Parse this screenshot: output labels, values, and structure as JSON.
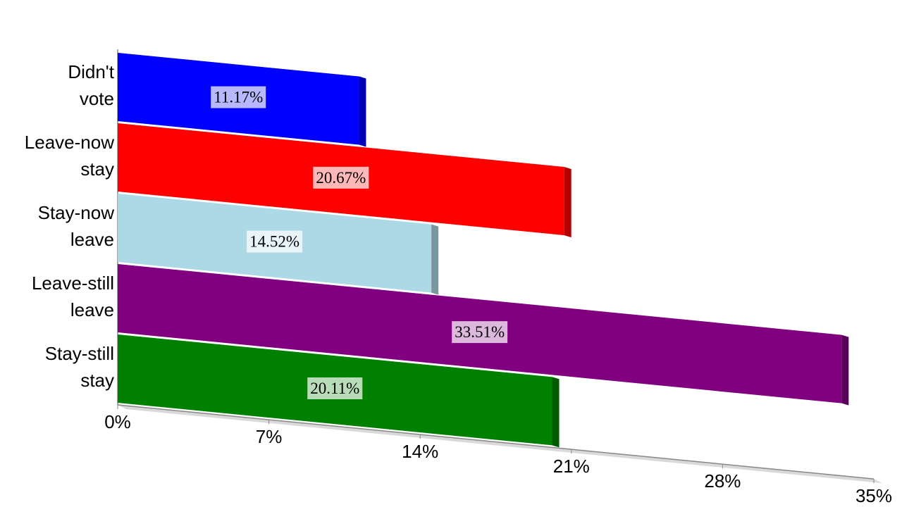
{
  "chart_data": {
    "type": "bar3d",
    "categories": [
      "Didn't vote",
      "Leave-now stay",
      "Stay-now leave",
      "Leave-still leave",
      "Stay-still stay"
    ],
    "values": [
      11.17,
      20.67,
      14.52,
      33.51,
      20.11
    ],
    "value_labels": [
      "11.17%",
      "20.67%",
      "14.52%",
      "33.51%",
      "20.11%"
    ],
    "colors": [
      "#0000ff",
      "#ff0000",
      "#add8e6",
      "#800080",
      "#008000"
    ],
    "xlim": [
      0,
      35
    ],
    "xticks": [
      {
        "value": 0,
        "label": "0%"
      },
      {
        "value": 7,
        "label": "7%"
      },
      {
        "value": 14,
        "label": "14%"
      },
      {
        "value": 21,
        "label": "21%"
      },
      {
        "value": 28,
        "label": "28%"
      },
      {
        "value": 35,
        "label": "35%"
      }
    ]
  }
}
